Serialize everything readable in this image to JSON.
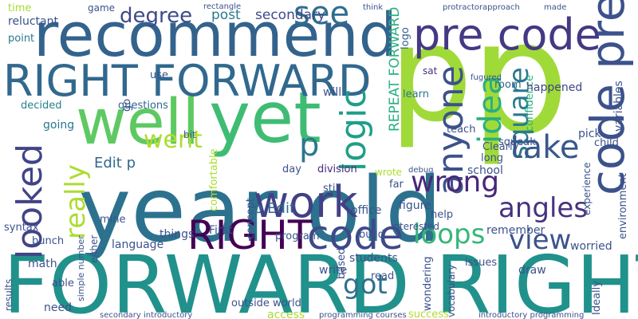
{
  "words": [
    "year old",
    "FORWARD RIGHT",
    "recommend",
    "p",
    "p",
    "well",
    "yet",
    "RIGHT FORWARD",
    "pre code",
    "code pre",
    "work",
    "RIGHT",
    "code",
    "looked",
    "logic",
    "see",
    "anyone",
    "idea",
    "square",
    "take",
    "wrong",
    "angles",
    "loops",
    "view",
    "got",
    "went",
    "really",
    "degree",
    "Edit p",
    "p Edit",
    "p",
    "time",
    "game",
    "post",
    "secondary",
    "rectangle",
    "REPEAT FORWARD",
    "logo",
    "protractor",
    "approach",
    "made",
    "reluctant",
    "think",
    "sat",
    "confidence",
    "room",
    "fugured",
    "happened",
    "variables",
    "learn",
    "point",
    "decided",
    "questions",
    "going",
    "go",
    "use",
    "bit",
    "comfortable",
    "day",
    "division",
    "concept",
    "still",
    "wrote",
    "far",
    "figure",
    "office",
    "debug",
    "school",
    "long",
    "Clearly",
    "teach",
    "will",
    "pick",
    "child",
    "environment",
    "experience",
    "squeak",
    "build",
    "help",
    "program",
    "First",
    "mine",
    "things",
    "language",
    "either",
    "syntax",
    "bunch",
    "math",
    "results",
    "able",
    "need",
    "access",
    "based",
    "students",
    "interested",
    "remember",
    "worried",
    "Ideally",
    "draw",
    "read",
    "wondering",
    "vocabulary",
    "success",
    "outside world",
    "introductory programming",
    "secondary introductory",
    "programming courses",
    "simple number",
    "write",
    "issues"
  ]
}
